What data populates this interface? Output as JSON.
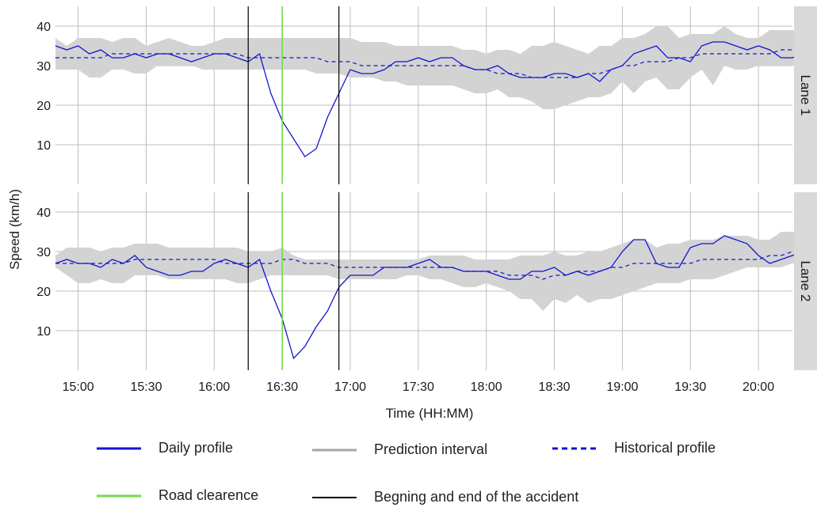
{
  "chart_data": {
    "type": "line",
    "title": "",
    "xlabel": "Time (HH:MM)",
    "ylabel": "Speed (km/h)",
    "x_tick_labels": [
      "15:00",
      "15:30",
      "16:00",
      "16:30",
      "17:00",
      "17:30",
      "18:00",
      "18:30",
      "19:00",
      "19:30",
      "20:00"
    ],
    "x_tick_minutes": [
      900,
      930,
      960,
      990,
      1020,
      1050,
      1080,
      1110,
      1140,
      1170,
      1200
    ],
    "xlim_minutes": [
      890,
      1215
    ],
    "ylim": [
      0,
      45
    ],
    "y_ticks": [
      10,
      20,
      30,
      40
    ],
    "grid": true,
    "legend_position": "bottom",
    "colors": {
      "daily": "#1414d2",
      "historical": "#1414d2",
      "interval": "#d3d3d3",
      "interval_legend": "#a6a6a6",
      "clearance": "#6ddc4a",
      "accident": "#000000",
      "grid": "#bdbdbd",
      "strip": "#d9d9d9"
    },
    "vlines": {
      "accident_start": "16:15",
      "clearance": "16:30",
      "accident_end": "16:55"
    },
    "legend": {
      "daily": "Daily profile",
      "interval": "Prediction interval",
      "historical": "Historical profile",
      "clearance": "Road clearence",
      "accident": "Begning and end of the accident"
    },
    "panels": [
      {
        "label": "Lane 1",
        "times": [
          "14:50",
          "14:55",
          "15:00",
          "15:05",
          "15:10",
          "15:15",
          "15:20",
          "15:25",
          "15:30",
          "15:35",
          "15:40",
          "15:45",
          "15:50",
          "15:55",
          "16:00",
          "16:05",
          "16:10",
          "16:15",
          "16:20",
          "16:25",
          "16:30",
          "16:40",
          "16:45",
          "16:50",
          "16:55",
          "17:00",
          "17:05",
          "17:10",
          "17:15",
          "17:20",
          "17:25",
          "17:30",
          "17:35",
          "17:40",
          "17:45",
          "17:50",
          "17:55",
          "18:00",
          "18:05",
          "18:10",
          "18:15",
          "18:20",
          "18:25",
          "18:30",
          "18:35",
          "18:40",
          "18:45",
          "18:50",
          "18:55",
          "19:00",
          "19:05",
          "19:10",
          "19:15",
          "19:20",
          "19:25",
          "19:30",
          "19:35",
          "19:40",
          "19:45",
          "19:50",
          "19:55",
          "20:00",
          "20:05",
          "20:10",
          "20:15",
          "20:20"
        ],
        "daily": [
          35,
          34,
          35,
          33,
          34,
          32,
          32,
          33,
          32,
          33,
          33,
          32,
          31,
          32,
          33,
          33,
          32,
          31,
          33,
          23,
          16,
          7,
          9,
          17,
          23,
          29,
          28,
          28,
          29,
          31,
          31,
          32,
          31,
          32,
          32,
          30,
          29,
          29,
          30,
          28,
          27,
          27,
          27,
          28,
          28,
          27,
          28,
          26,
          29,
          30,
          33,
          34,
          35,
          32,
          32,
          31,
          35,
          36,
          36,
          35,
          34,
          35,
          34,
          32,
          32,
          33
        ],
        "historical": [
          32,
          32,
          32,
          32,
          32,
          33,
          33,
          33,
          33,
          33,
          33,
          33,
          33,
          33,
          33,
          33,
          33,
          32,
          32,
          32,
          32,
          32,
          32,
          31,
          31,
          31,
          30,
          30,
          30,
          30,
          30,
          30,
          30,
          30,
          30,
          30,
          29,
          29,
          28,
          28,
          28,
          27,
          27,
          27,
          27,
          27,
          28,
          28,
          29,
          30,
          30,
          31,
          31,
          31,
          32,
          32,
          33,
          33,
          33,
          33,
          33,
          33,
          33,
          34,
          34,
          34
        ],
        "upper": [
          37,
          35,
          37,
          37,
          37,
          36,
          37,
          37,
          35,
          36,
          37,
          36,
          35,
          35,
          36,
          37,
          37,
          37,
          37,
          37,
          37,
          37,
          37,
          37,
          37,
          37,
          36,
          36,
          36,
          35,
          35,
          35,
          35,
          35,
          35,
          34,
          34,
          33,
          34,
          34,
          33,
          35,
          35,
          36,
          35,
          34,
          33,
          35,
          35,
          37,
          37,
          38,
          40,
          40,
          37,
          38,
          38,
          38,
          40,
          38,
          37,
          37,
          39,
          39,
          39,
          38
        ],
        "lower": [
          29,
          29,
          29,
          27,
          27,
          29,
          29,
          28,
          28,
          30,
          30,
          30,
          30,
          29,
          29,
          29,
          29,
          29,
          29,
          29,
          29,
          29,
          28,
          28,
          28,
          27,
          27,
          27,
          26,
          26,
          25,
          25,
          25,
          25,
          25,
          24,
          23,
          23,
          24,
          22,
          22,
          21,
          19,
          19,
          20,
          21,
          22,
          22,
          23,
          26,
          23,
          26,
          27,
          24,
          24,
          27,
          29,
          25,
          30,
          29,
          29,
          30,
          30,
          30,
          30,
          30
        ]
      },
      {
        "label": "Lane 2",
        "times": [
          "14:50",
          "14:55",
          "15:00",
          "15:05",
          "15:10",
          "15:15",
          "15:20",
          "15:25",
          "15:30",
          "15:35",
          "15:40",
          "15:45",
          "15:50",
          "15:55",
          "16:00",
          "16:05",
          "16:10",
          "16:15",
          "16:20",
          "16:25",
          "16:30",
          "16:35",
          "16:40",
          "16:45",
          "16:50",
          "16:55",
          "17:00",
          "17:05",
          "17:10",
          "17:15",
          "17:20",
          "17:25",
          "17:30",
          "17:35",
          "17:40",
          "17:45",
          "17:50",
          "17:55",
          "18:00",
          "18:05",
          "18:10",
          "18:15",
          "18:20",
          "18:25",
          "18:30",
          "18:35",
          "18:40",
          "18:45",
          "18:50",
          "18:55",
          "19:00",
          "19:05",
          "19:10",
          "19:15",
          "19:20",
          "19:25",
          "19:30",
          "19:35",
          "19:40",
          "19:45",
          "19:50",
          "19:55",
          "20:00",
          "20:05",
          "20:10",
          "20:15",
          "20:20"
        ],
        "daily": [
          27,
          28,
          27,
          27,
          26,
          28,
          27,
          29,
          26,
          25,
          24,
          24,
          25,
          25,
          27,
          28,
          27,
          26,
          28,
          20,
          13,
          3,
          6,
          11,
          15,
          21,
          24,
          24,
          24,
          26,
          26,
          26,
          27,
          28,
          26,
          26,
          25,
          25,
          25,
          24,
          23,
          23,
          25,
          25,
          26,
          24,
          25,
          24,
          25,
          26,
          30,
          33,
          33,
          27,
          26,
          26,
          31,
          32,
          32,
          34,
          33,
          32,
          29,
          27,
          28,
          29,
          30
        ],
        "historical": [
          27,
          27,
          27,
          27,
          27,
          27,
          27,
          28,
          28,
          28,
          28,
          28,
          28,
          28,
          28,
          27,
          27,
          27,
          27,
          27,
          28,
          28,
          27,
          27,
          27,
          26,
          26,
          26,
          26,
          26,
          26,
          26,
          26,
          26,
          26,
          26,
          25,
          25,
          25,
          25,
          24,
          24,
          24,
          23,
          24,
          24,
          25,
          25,
          25,
          26,
          26,
          27,
          27,
          27,
          27,
          27,
          27,
          28,
          28,
          28,
          28,
          28,
          28,
          29,
          29,
          30,
          30
        ],
        "upper": [
          29,
          31,
          31,
          31,
          30,
          31,
          31,
          32,
          32,
          32,
          31,
          31,
          31,
          31,
          31,
          31,
          31,
          30,
          30,
          30,
          31,
          29,
          28,
          28,
          28,
          28,
          28,
          28,
          28,
          28,
          28,
          28,
          28,
          29,
          29,
          29,
          29,
          28,
          28,
          28,
          28,
          29,
          29,
          29,
          30,
          29,
          29,
          30,
          30,
          31,
          32,
          33,
          33,
          31,
          32,
          32,
          33,
          33,
          33,
          34,
          34,
          34,
          33,
          33,
          35,
          35,
          35
        ],
        "lower": [
          26,
          24,
          22,
          22,
          23,
          22,
          22,
          24,
          24,
          24,
          23,
          23,
          23,
          23,
          23,
          23,
          22,
          22,
          23,
          24,
          24,
          24,
          24,
          24,
          24,
          23,
          23,
          23,
          23,
          23,
          23,
          24,
          24,
          23,
          23,
          22,
          21,
          21,
          22,
          21,
          20,
          18,
          18,
          15,
          18,
          17,
          19,
          17,
          18,
          18,
          19,
          20,
          21,
          22,
          22,
          22,
          23,
          23,
          23,
          24,
          25,
          26,
          26,
          26,
          26,
          27,
          27
        ]
      }
    ]
  }
}
